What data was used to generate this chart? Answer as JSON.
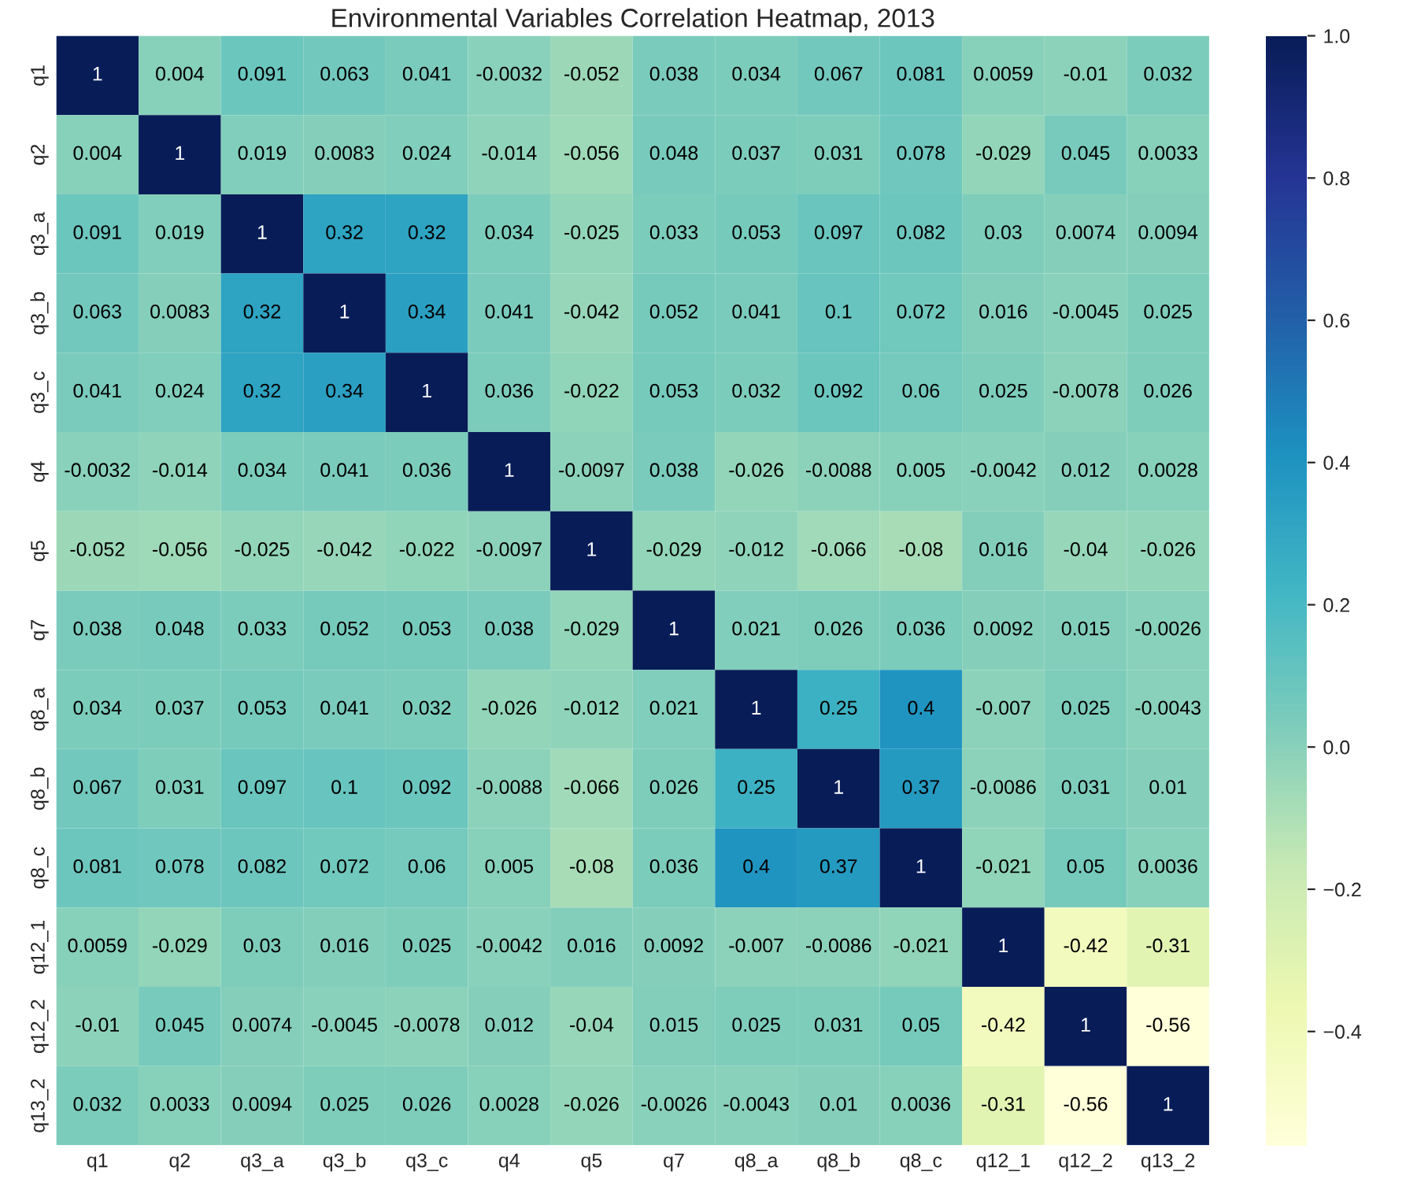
{
  "chart_data": {
    "type": "heatmap",
    "title": "Environmental Variables Correlation Heatmap, 2013",
    "categories": [
      "q1",
      "q2",
      "q3_a",
      "q3_b",
      "q3_c",
      "q4",
      "q5",
      "q7",
      "q8_a",
      "q8_b",
      "q8_c",
      "q12_1",
      "q12_2",
      "q13_2"
    ],
    "y_categories": [
      "q1",
      "q2",
      "q3_a",
      "q3_b",
      "q3_c",
      "q4",
      "q5",
      "q7",
      "q8_a",
      "q8_b",
      "q8_c",
      "q12_1",
      "q12_2",
      "q13_2"
    ],
    "cells": [
      [
        1,
        0.004,
        0.091,
        0.063,
        0.041,
        -0.0032,
        -0.052,
        0.038,
        0.034,
        0.067,
        0.081,
        0.0059,
        -0.01,
        0.032
      ],
      [
        0.004,
        1,
        0.019,
        0.0083,
        0.024,
        -0.014,
        -0.056,
        0.048,
        0.037,
        0.031,
        0.078,
        -0.029,
        0.045,
        0.0033
      ],
      [
        0.091,
        0.019,
        1,
        0.32,
        0.32,
        0.034,
        -0.025,
        0.033,
        0.053,
        0.097,
        0.082,
        0.03,
        0.0074,
        0.0094
      ],
      [
        0.063,
        0.0083,
        0.32,
        1,
        0.34,
        0.041,
        -0.042,
        0.052,
        0.041,
        0.1,
        0.072,
        0.016,
        -0.0045,
        0.025
      ],
      [
        0.041,
        0.024,
        0.32,
        0.34,
        1,
        0.036,
        -0.022,
        0.053,
        0.032,
        0.092,
        0.06,
        0.025,
        -0.0078,
        0.026
      ],
      [
        -0.0032,
        -0.014,
        0.034,
        0.041,
        0.036,
        1,
        -0.0097,
        0.038,
        -0.026,
        -0.0088,
        0.005,
        -0.0042,
        0.012,
        0.0028
      ],
      [
        -0.052,
        -0.056,
        -0.025,
        -0.042,
        -0.022,
        -0.0097,
        1,
        -0.029,
        -0.012,
        -0.066,
        -0.08,
        0.016,
        -0.04,
        -0.026
      ],
      [
        0.038,
        0.048,
        0.033,
        0.052,
        0.053,
        0.038,
        -0.029,
        1,
        0.021,
        0.026,
        0.036,
        0.0092,
        0.015,
        -0.0026
      ],
      [
        0.034,
        0.037,
        0.053,
        0.041,
        0.032,
        -0.026,
        -0.012,
        0.021,
        1,
        0.25,
        0.4,
        -0.007,
        0.025,
        -0.0043
      ],
      [
        0.067,
        0.031,
        0.097,
        0.1,
        0.092,
        -0.0088,
        -0.066,
        0.026,
        0.25,
        1,
        0.37,
        -0.0086,
        0.031,
        0.01
      ],
      [
        0.081,
        0.078,
        0.082,
        0.072,
        0.06,
        0.005,
        -0.08,
        0.036,
        0.4,
        0.37,
        1,
        -0.021,
        0.05,
        0.0036
      ],
      [
        0.0059,
        -0.029,
        0.03,
        0.016,
        0.025,
        -0.0042,
        0.016,
        0.0092,
        -0.007,
        -0.0086,
        -0.021,
        1,
        -0.42,
        -0.31
      ],
      [
        -0.01,
        0.045,
        0.0074,
        -0.0045,
        -0.0078,
        0.012,
        -0.04,
        0.015,
        0.025,
        0.031,
        0.05,
        -0.42,
        1,
        -0.56
      ],
      [
        0.032,
        0.0033,
        0.0094,
        0.025,
        0.026,
        0.0028,
        -0.026,
        -0.0026,
        -0.0043,
        0.01,
        0.0036,
        -0.31,
        -0.56,
        1
      ]
    ],
    "clim": [
      -0.56,
      1
    ],
    "cticks": [
      {
        "value": -0.4,
        "label": "−0.4"
      },
      {
        "value": -0.2,
        "label": "−0.2"
      },
      {
        "value": 0,
        "label": "0.0"
      },
      {
        "value": 0.2,
        "label": "0.2"
      },
      {
        "value": 0.4,
        "label": "0.4"
      },
      {
        "value": 0.6,
        "label": "0.6"
      },
      {
        "value": 0.8,
        "label": "0.8"
      },
      {
        "value": 1,
        "label": "1.0"
      }
    ],
    "data_labels": true
  }
}
